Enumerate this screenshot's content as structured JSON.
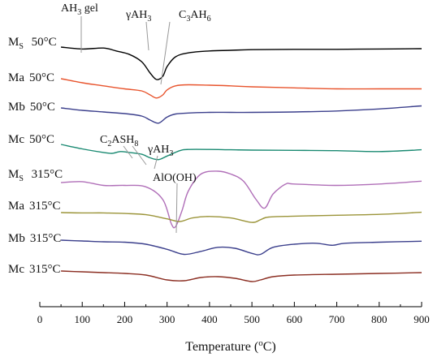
{
  "chart_data": {
    "type": "line",
    "xlabel": "Temperature (°C)",
    "xlim": [
      0,
      900
    ],
    "x_ticks": [
      "0",
      "100",
      "200",
      "300",
      "400",
      "500",
      "600",
      "700",
      "800",
      "900"
    ],
    "grid": false,
    "series": [
      {
        "name": "Ms 50°C",
        "color": "#000000",
        "x": [
          50,
          100,
          150,
          180,
          210,
          240,
          260,
          275,
          290,
          300,
          320,
          350,
          400,
          450,
          500,
          600,
          700,
          800,
          900
        ],
        "y": [
          0,
          -0.06,
          -0.03,
          -0.12,
          -0.22,
          -0.45,
          -0.8,
          -1.0,
          -0.9,
          -0.6,
          -0.3,
          -0.18,
          -0.12,
          -0.1,
          -0.08,
          -0.07,
          -0.07,
          -0.06,
          -0.05
        ]
      },
      {
        "name": "Ma 50°C",
        "color": "#e8542d",
        "x": [
          50,
          100,
          150,
          200,
          240,
          260,
          275,
          290,
          300,
          320,
          350,
          400,
          450,
          500,
          600,
          700,
          800,
          900
        ],
        "y": [
          0,
          -0.2,
          -0.35,
          -0.5,
          -0.6,
          -0.8,
          -0.95,
          -0.8,
          -0.55,
          -0.35,
          -0.3,
          -0.32,
          -0.35,
          -0.4,
          -0.45,
          -0.5,
          -0.5,
          -0.5
        ]
      },
      {
        "name": "Mb 50°C",
        "color": "#3b3f8c",
        "x": [
          50,
          100,
          150,
          200,
          240,
          260,
          280,
          300,
          320,
          350,
          400,
          450,
          500,
          600,
          700,
          800,
          900
        ],
        "y": [
          0,
          -0.12,
          -0.2,
          -0.28,
          -0.4,
          -0.6,
          -0.75,
          -0.45,
          -0.3,
          -0.25,
          -0.22,
          -0.22,
          -0.22,
          -0.2,
          -0.15,
          -0.05,
          0.1
        ]
      },
      {
        "name": "Mc 50°C",
        "color": "#1a8a72",
        "x": [
          50,
          100,
          150,
          170,
          190,
          210,
          240,
          260,
          280,
          300,
          330,
          350,
          400,
          450,
          500,
          600,
          700,
          800,
          900
        ],
        "y": [
          0,
          -0.25,
          -0.45,
          -0.5,
          -0.4,
          -0.45,
          -0.55,
          -0.75,
          -0.85,
          -0.65,
          -0.35,
          -0.28,
          -0.28,
          -0.3,
          -0.32,
          -0.33,
          -0.35,
          -0.4,
          -0.3
        ]
      },
      {
        "name": "Ms 315°C",
        "color": "#b06fb8",
        "x": [
          50,
          100,
          150,
          200,
          250,
          290,
          310,
          320,
          335,
          350,
          380,
          420,
          450,
          480,
          510,
          530,
          550,
          580,
          600,
          700,
          800,
          900
        ],
        "y": [
          0,
          0.03,
          -0.1,
          -0.1,
          -0.15,
          -0.6,
          -1.45,
          -1.55,
          -1.0,
          -0.3,
          0.3,
          0.4,
          0.3,
          0.05,
          -0.6,
          -0.9,
          -0.4,
          -0.05,
          -0.05,
          -0.1,
          -0.05,
          0.05
        ]
      },
      {
        "name": "Ma 315°C",
        "color": "#9b9439",
        "x": [
          50,
          100,
          150,
          200,
          250,
          300,
          330,
          360,
          400,
          450,
          500,
          520,
          540,
          600,
          700,
          800,
          900
        ],
        "y": [
          0,
          -0.02,
          -0.02,
          -0.05,
          -0.12,
          -0.35,
          -0.5,
          -0.3,
          -0.22,
          -0.3,
          -0.55,
          -0.4,
          -0.25,
          -0.2,
          -0.15,
          -0.1,
          0.02
        ]
      },
      {
        "name": "Mb 315°C",
        "color": "#3b3f8c",
        "x": [
          50,
          100,
          150,
          200,
          250,
          300,
          340,
          380,
          420,
          460,
          500,
          520,
          550,
          600,
          650,
          690,
          720,
          800,
          900
        ],
        "y": [
          0,
          -0.04,
          -0.08,
          -0.1,
          -0.2,
          -0.45,
          -0.7,
          -0.55,
          -0.35,
          -0.4,
          -0.65,
          -0.7,
          -0.35,
          -0.2,
          -0.15,
          -0.25,
          -0.15,
          -0.1,
          -0.05
        ]
      },
      {
        "name": "Mc 315°C",
        "color": "#8b2e22",
        "x": [
          50,
          100,
          150,
          200,
          250,
          300,
          340,
          380,
          420,
          460,
          500,
          520,
          550,
          600,
          700,
          800,
          900
        ],
        "y": [
          0,
          -0.05,
          -0.1,
          -0.15,
          -0.25,
          -0.55,
          -0.6,
          -0.4,
          -0.35,
          -0.45,
          -0.65,
          -0.55,
          -0.35,
          -0.25,
          -0.2,
          -0.15,
          -0.1
        ]
      }
    ],
    "row_labels": [
      {
        "main": "M",
        "sub": "S",
        "temp": "50°C"
      },
      {
        "main": "Ma",
        "sub": "",
        "temp": "50°C"
      },
      {
        "main": "Mb",
        "sub": "",
        "temp": "50°C"
      },
      {
        "main": "Mc",
        "sub": "",
        "temp": "50°C"
      },
      {
        "main": "M",
        "sub": "S",
        "temp": "315°C"
      },
      {
        "main": "Ma",
        "sub": "",
        "temp": "315°C"
      },
      {
        "main": "Mb",
        "sub": "",
        "temp": "315°C"
      },
      {
        "main": "Mc",
        "sub": "",
        "temp": "315°C"
      }
    ],
    "annotations": [
      {
        "parts": [
          [
            "AH",
            ""
          ],
          [
            "3",
            "sub"
          ],
          [
            " gel",
            ""
          ]
        ],
        "x": 100
      },
      {
        "parts": [
          [
            "γAH",
            ""
          ],
          [
            "3",
            "sub"
          ]
        ],
        "x": 260
      },
      {
        "parts": [
          [
            "C",
            ""
          ],
          [
            "3",
            "sub"
          ],
          [
            "AH",
            ""
          ],
          [
            "6",
            "sub"
          ]
        ],
        "x": 285
      },
      {
        "parts": [
          [
            "C",
            ""
          ],
          [
            "2",
            "sub"
          ],
          [
            "ASH",
            ""
          ],
          [
            "8",
            "sub"
          ]
        ],
        "x": 225
      },
      {
        "parts": [
          [
            "γAH",
            ""
          ],
          [
            "3",
            "sub"
          ]
        ],
        "x": 270
      },
      {
        "parts": [
          [
            "AlO(OH)",
            ""
          ]
        ],
        "x": 320
      }
    ]
  }
}
